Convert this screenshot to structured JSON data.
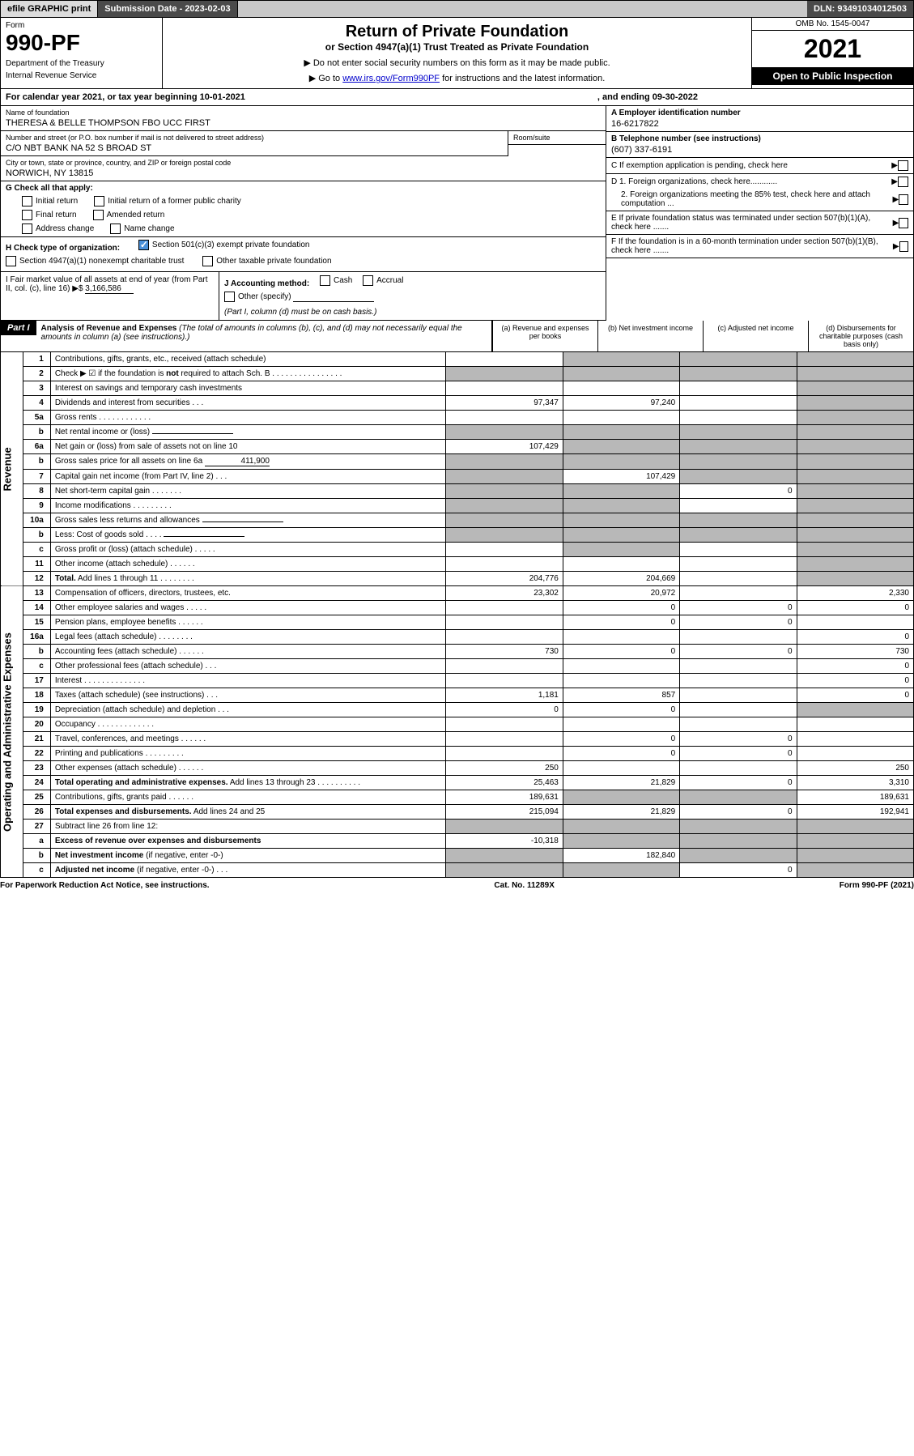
{
  "topbar": {
    "efile": "efile GRAPHIC print",
    "submission": "Submission Date - 2023-02-03",
    "dln": "DLN: 93491034012503"
  },
  "header": {
    "form_label": "Form",
    "form_number": "990-PF",
    "dept": "Department of the Treasury",
    "irs": "Internal Revenue Service",
    "title": "Return of Private Foundation",
    "subtitle": "or Section 4947(a)(1) Trust Treated as Private Foundation",
    "note1": "▶ Do not enter social security numbers on this form as it may be made public.",
    "note2_pre": "▶ Go to ",
    "note2_link": "www.irs.gov/Form990PF",
    "note2_post": " for instructions and the latest information.",
    "omb": "OMB No. 1545-0047",
    "year": "2021",
    "inspection": "Open to Public Inspection"
  },
  "calendar": {
    "text": "For calendar year 2021, or tax year beginning 10-01-2021",
    "ending": ", and ending 09-30-2022"
  },
  "foundation": {
    "name_label": "Name of foundation",
    "name": "THERESA & BELLE THOMPSON FBO UCC FIRST",
    "addr_label": "Number and street (or P.O. box number if mail is not delivered to street address)",
    "addr": "C/O NBT BANK NA 52 S BROAD ST",
    "room_label": "Room/suite",
    "city_label": "City or town, state or province, country, and ZIP or foreign postal code",
    "city": "NORWICH, NY  13815",
    "ein_label": "A Employer identification number",
    "ein": "16-6217822",
    "phone_label": "B Telephone number (see instructions)",
    "phone": "(607) 337-6191",
    "c_label": "C If exemption application is pending, check here",
    "d1": "D 1. Foreign organizations, check here............",
    "d2": "2. Foreign organizations meeting the 85% test, check here and attach computation ...",
    "e": "E  If private foundation status was terminated under section 507(b)(1)(A), check here .......",
    "f": "F  If the foundation is in a 60-month termination under section 507(b)(1)(B), check here .......",
    "g_label": "G Check all that apply:",
    "g_opts": {
      "initial": "Initial return",
      "initial_former": "Initial return of a former public charity",
      "final": "Final return",
      "amended": "Amended return",
      "addr_change": "Address change",
      "name_change": "Name change"
    },
    "h_label": "H Check type of organization:",
    "h_501c3": "Section 501(c)(3) exempt private foundation",
    "h_4947": "Section 4947(a)(1) nonexempt charitable trust",
    "h_other": "Other taxable private foundation",
    "i_label": "I Fair market value of all assets at end of year (from Part II, col. (c), line 16)",
    "i_arrow": "▶$",
    "i_value": "3,166,586",
    "j_label": "J Accounting method:",
    "j_cash": "Cash",
    "j_accrual": "Accrual",
    "j_other": "Other (specify)",
    "j_note": "(Part I, column (d) must be on cash basis.)"
  },
  "part1": {
    "badge": "Part I",
    "title": "Analysis of Revenue and Expenses",
    "title_note": " (The total of amounts in columns (b), (c), and (d) may not necessarily equal the amounts in column (a) (see instructions).)",
    "col_a": "(a)   Revenue and expenses per books",
    "col_b": "(b)   Net investment income",
    "col_c": "(c)   Adjusted net income",
    "col_d": "(d)   Disbursements for charitable purposes (cash basis only)"
  },
  "side_labels": {
    "revenue": "Revenue",
    "expenses": "Operating and Administrative Expenses"
  },
  "lines": [
    {
      "n": "1",
      "label": "Contributions, gifts, grants, etc., received (attach schedule)",
      "a": "",
      "b": "shaded",
      "c": "shaded",
      "d": "shaded"
    },
    {
      "n": "2",
      "label": "Check ▶ ☑ if the foundation is <b>not</b> required to attach Sch. B   .   .   .   .   .   .   .   .   .   .   .   .   .   .   .   .",
      "a": "shaded",
      "b": "shaded",
      "c": "shaded",
      "d": "shaded"
    },
    {
      "n": "3",
      "label": "Interest on savings and temporary cash investments",
      "a": "",
      "b": "",
      "c": "",
      "d": "shaded"
    },
    {
      "n": "4",
      "label": "Dividends and interest from securities    .   .   .",
      "a": "97,347",
      "b": "97,240",
      "c": "",
      "d": "shaded"
    },
    {
      "n": "5a",
      "label": "Gross rents    .   .   .   .   .   .   .   .   .   .   .   .",
      "a": "",
      "b": "",
      "c": "",
      "d": "shaded"
    },
    {
      "n": "b",
      "label": "Net rental income or (loss)",
      "a": "shaded",
      "b": "shaded",
      "c": "shaded",
      "d": "shaded",
      "inline_blank": true
    },
    {
      "n": "6a",
      "label": "Net gain or (loss) from sale of assets not on line 10",
      "a": "107,429",
      "b": "shaded",
      "c": "shaded",
      "d": "shaded"
    },
    {
      "n": "b",
      "label": "Gross sales price for all assets on line 6a",
      "inline_val": "411,900",
      "a": "shaded",
      "b": "shaded",
      "c": "shaded",
      "d": "shaded"
    },
    {
      "n": "7",
      "label": "Capital gain net income (from Part IV, line 2)    .   .   .",
      "a": "shaded",
      "b": "107,429",
      "c": "shaded",
      "d": "shaded"
    },
    {
      "n": "8",
      "label": "Net short-term capital gain   .   .   .   .   .   .   .",
      "a": "shaded",
      "b": "shaded",
      "c": "0",
      "d": "shaded"
    },
    {
      "n": "9",
      "label": "Income modifications   .   .   .   .   .   .   .   .   .",
      "a": "shaded",
      "b": "shaded",
      "c": "",
      "d": "shaded"
    },
    {
      "n": "10a",
      "label": "Gross sales less returns and allowances",
      "a": "shaded",
      "b": "shaded",
      "c": "shaded",
      "d": "shaded",
      "inline_blank": true
    },
    {
      "n": "b",
      "label": "Less: Cost of goods sold     .   .   .   .",
      "a": "shaded",
      "b": "shaded",
      "c": "shaded",
      "d": "shaded",
      "inline_blank": true
    },
    {
      "n": "c",
      "label": "Gross profit or (loss) (attach schedule)     .   .   .   .   .",
      "a": "",
      "b": "shaded",
      "c": "",
      "d": "shaded"
    },
    {
      "n": "11",
      "label": "Other income (attach schedule)    .   .   .   .   .   .",
      "a": "",
      "b": "",
      "c": "",
      "d": "shaded"
    },
    {
      "n": "12",
      "label": "<b>Total.</b> Add lines 1 through 11    .   .   .   .   .   .   .   .",
      "a": "204,776",
      "b": "204,669",
      "c": "",
      "d": "shaded",
      "bold": true
    },
    {
      "n": "13",
      "label": "Compensation of officers, directors, trustees, etc.",
      "a": "23,302",
      "b": "20,972",
      "c": "",
      "d": "2,330"
    },
    {
      "n": "14",
      "label": "Other employee salaries and wages    .   .   .   .   .",
      "a": "",
      "b": "0",
      "c": "0",
      "d": "0"
    },
    {
      "n": "15",
      "label": "Pension plans, employee benefits   .   .   .   .   .   .",
      "a": "",
      "b": "0",
      "c": "0",
      "d": ""
    },
    {
      "n": "16a",
      "label": "Legal fees (attach schedule)   .   .   .   .   .   .   .   .",
      "a": "",
      "b": "",
      "c": "",
      "d": "0"
    },
    {
      "n": "b",
      "label": "Accounting fees (attach schedule)   .   .   .   .   .   .",
      "a": "730",
      "b": "0",
      "c": "0",
      "d": "730"
    },
    {
      "n": "c",
      "label": "Other professional fees (attach schedule)    .   .   .",
      "a": "",
      "b": "",
      "c": "",
      "d": "0"
    },
    {
      "n": "17",
      "label": "Interest   .   .   .   .   .   .   .   .   .   .   .   .   .   .",
      "a": "",
      "b": "",
      "c": "",
      "d": "0"
    },
    {
      "n": "18",
      "label": "Taxes (attach schedule) (see instructions)    .   .   .",
      "a": "1,181",
      "b": "857",
      "c": "",
      "d": "0"
    },
    {
      "n": "19",
      "label": "Depreciation (attach schedule) and depletion    .   .   .",
      "a": "0",
      "b": "0",
      "c": "",
      "d": "shaded"
    },
    {
      "n": "20",
      "label": "Occupancy   .   .   .   .   .   .   .   .   .   .   .   .   .",
      "a": "",
      "b": "",
      "c": "",
      "d": ""
    },
    {
      "n": "21",
      "label": "Travel, conferences, and meetings   .   .   .   .   .   .",
      "a": "",
      "b": "0",
      "c": "0",
      "d": ""
    },
    {
      "n": "22",
      "label": "Printing and publications   .   .   .   .   .   .   .   .   .",
      "a": "",
      "b": "0",
      "c": "0",
      "d": ""
    },
    {
      "n": "23",
      "label": "Other expenses (attach schedule)   .   .   .   .   .   .",
      "a": "250",
      "b": "",
      "c": "",
      "d": "250"
    },
    {
      "n": "24",
      "label": "<b>Total operating and administrative expenses.</b> Add lines 13 through 23   .   .   .   .   .   .   .   .   .   .",
      "a": "25,463",
      "b": "21,829",
      "c": "0",
      "d": "3,310",
      "bold": true
    },
    {
      "n": "25",
      "label": "Contributions, gifts, grants paid    .   .   .   .   .   .",
      "a": "189,631",
      "b": "shaded",
      "c": "shaded",
      "d": "189,631"
    },
    {
      "n": "26",
      "label": "<b>Total expenses and disbursements.</b> Add lines 24 and 25",
      "a": "215,094",
      "b": "21,829",
      "c": "0",
      "d": "192,941",
      "bold": true
    },
    {
      "n": "27",
      "label": "Subtract line 26 from line 12:",
      "a": "shaded",
      "b": "shaded",
      "c": "shaded",
      "d": "shaded"
    },
    {
      "n": "a",
      "label": "<b>Excess of revenue over expenses and disbursements</b>",
      "a": "-10,318",
      "b": "shaded",
      "c": "shaded",
      "d": "shaded",
      "bold": true
    },
    {
      "n": "b",
      "label": "<b>Net investment income</b> (if negative, enter -0-)",
      "a": "shaded",
      "b": "182,840",
      "c": "shaded",
      "d": "shaded",
      "bold": true
    },
    {
      "n": "c",
      "label": "<b>Adjusted net income</b> (if negative, enter -0-)   .   .   .",
      "a": "shaded",
      "b": "shaded",
      "c": "0",
      "d": "shaded",
      "bold": true
    }
  ],
  "footer": {
    "left": "For Paperwork Reduction Act Notice, see instructions.",
    "center": "Cat. No. 11289X",
    "right": "Form 990-PF (2021)"
  }
}
